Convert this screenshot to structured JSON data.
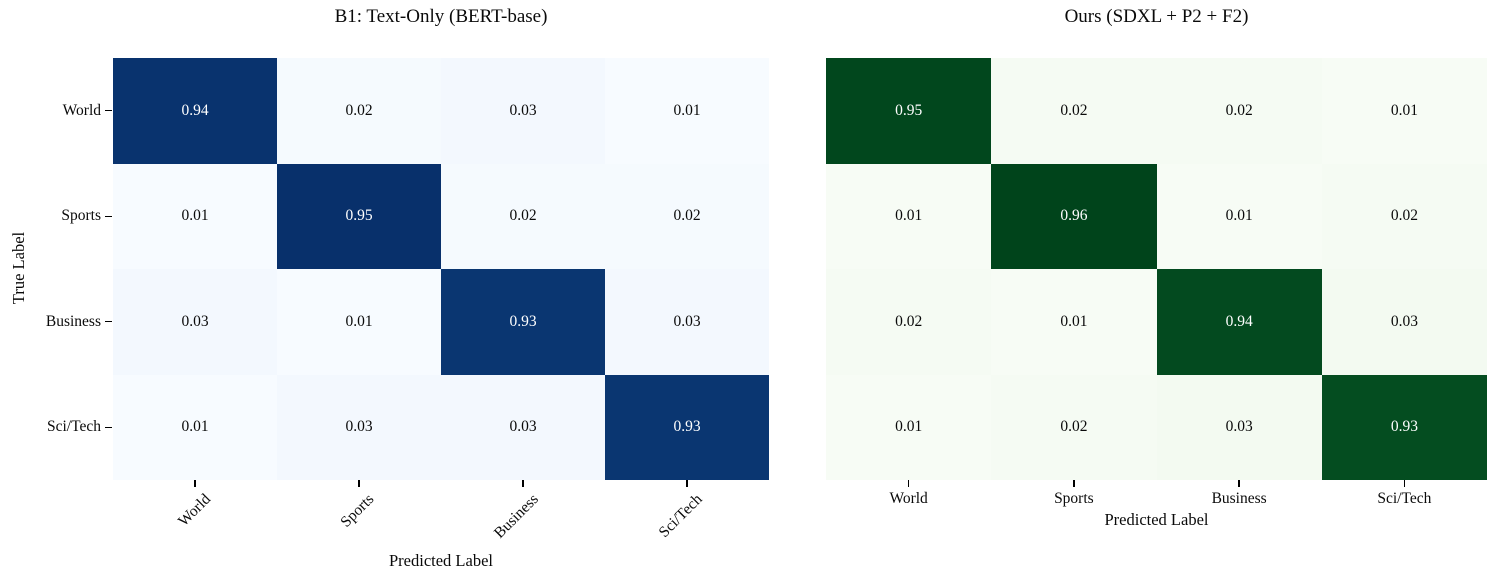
{
  "page": {
    "background": "#ffffff"
  },
  "chart_data": [
    {
      "type": "heatmap",
      "title": "B1: Text-Only (BERT-base)",
      "xlabel": "Predicted Label",
      "ylabel": "True Label",
      "x_categories": [
        "World",
        "Sports",
        "Business",
        "Sci/Tech"
      ],
      "y_categories": [
        "World",
        "Sports",
        "Business",
        "Sci/Tech"
      ],
      "values": [
        [
          0.94,
          0.02,
          0.03,
          0.01
        ],
        [
          0.01,
          0.95,
          0.02,
          0.02
        ],
        [
          0.03,
          0.01,
          0.93,
          0.03
        ],
        [
          0.01,
          0.03,
          0.03,
          0.93
        ]
      ],
      "value_format": "2dp",
      "colormap": "Blues",
      "colormap_light": "#f7fbff",
      "colormap_dark": "#08306b",
      "cell_text_high": "#ffffff",
      "cell_text_low": "#0a0a0a",
      "x_tick_rotation_deg": 45,
      "show_y_tick_labels": true,
      "grid": false,
      "legend": "none"
    },
    {
      "type": "heatmap",
      "title": "Ours (SDXL + P2 + F2)",
      "xlabel": "Predicted Label",
      "ylabel": "",
      "x_categories": [
        "World",
        "Sports",
        "Business",
        "Sci/Tech"
      ],
      "y_categories": [
        "World",
        "Sports",
        "Business",
        "Sci/Tech"
      ],
      "values": [
        [
          0.95,
          0.02,
          0.02,
          0.01
        ],
        [
          0.01,
          0.96,
          0.01,
          0.02
        ],
        [
          0.02,
          0.01,
          0.94,
          0.03
        ],
        [
          0.01,
          0.02,
          0.03,
          0.93
        ]
      ],
      "value_format": "2dp",
      "colormap": "Greens",
      "colormap_light": "#f7fcf5",
      "colormap_dark": "#00441b",
      "cell_text_high": "#ffffff",
      "cell_text_low": "#0a0a0a",
      "x_tick_rotation_deg": 0,
      "show_y_tick_labels": false,
      "grid": false,
      "legend": "none"
    }
  ]
}
